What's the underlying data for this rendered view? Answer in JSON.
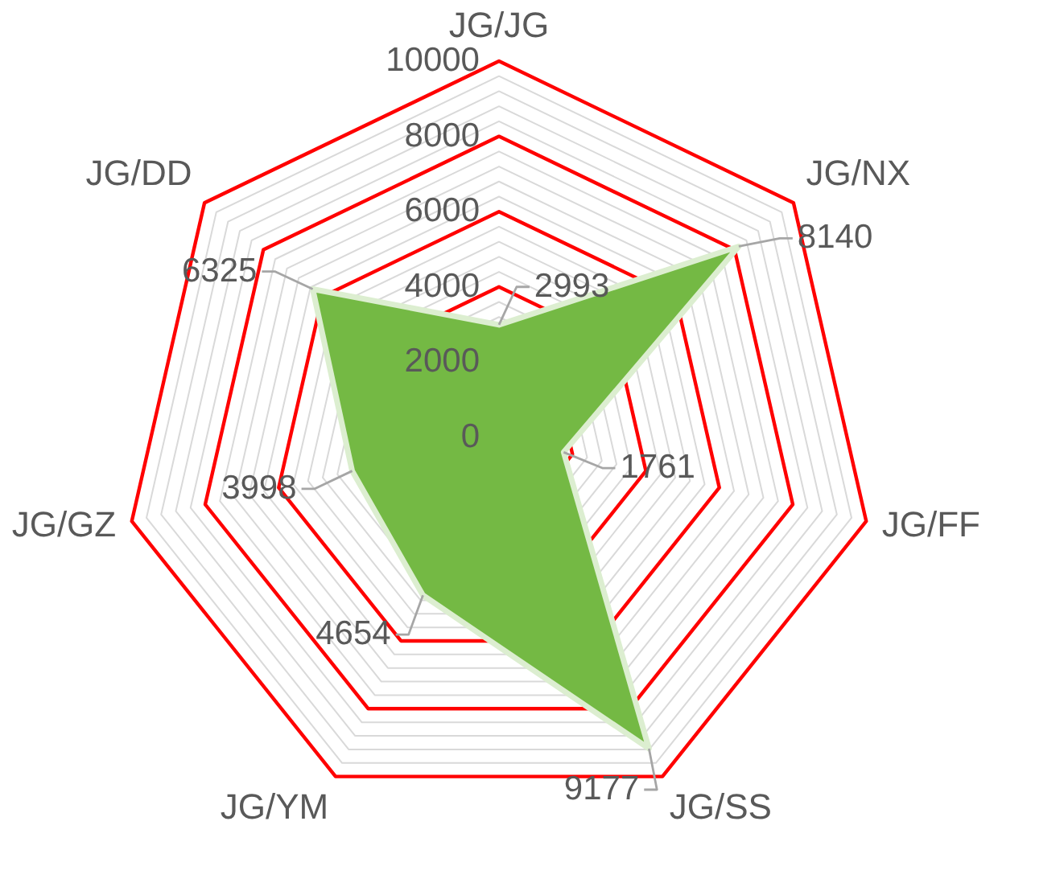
{
  "chart_data": {
    "type": "radar",
    "categories": [
      "JG/JG",
      "JG/NX",
      "JG/FF",
      "JG/SS",
      "JG/YM",
      "JG/GZ",
      "JG/DD"
    ],
    "series": [
      {
        "color": "#74b944",
        "values": [
          2993,
          8140,
          1761,
          9177,
          4654,
          3998,
          6325
        ]
      }
    ],
    "ylim": [
      0,
      10000
    ],
    "yticks": [
      0,
      2000,
      4000,
      6000,
      8000,
      10000
    ],
    "grid": true,
    "data_labels": true
  }
}
